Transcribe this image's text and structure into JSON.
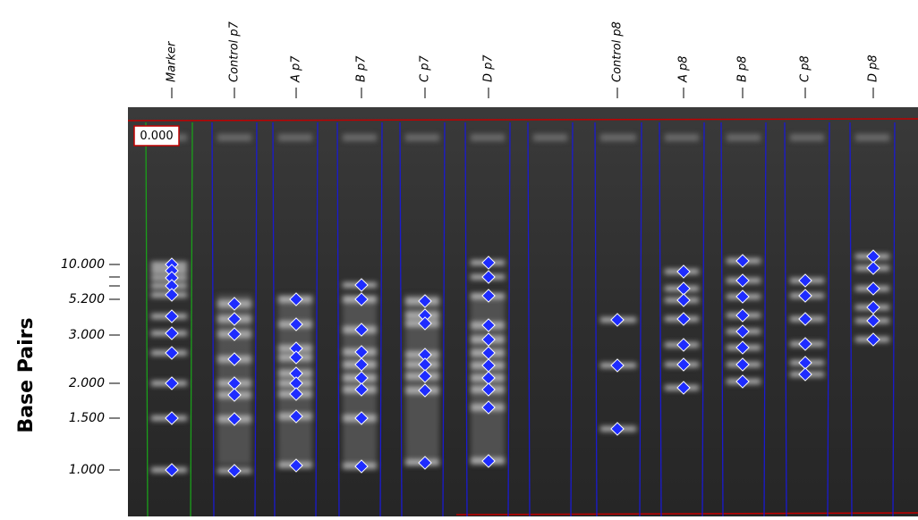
{
  "axis": {
    "label": "Base Pairs",
    "ticks": [
      "10.000",
      "5.200",
      "3.000",
      "2.000",
      "1.500",
      "1.000"
    ]
  },
  "lanes": [
    "Marker",
    "Control p7",
    "A p7",
    "B p7",
    "C p7",
    "D p7",
    "Control p8",
    "A p8",
    "B p8",
    "C p8",
    "D p8"
  ],
  "readout": "0.000"
}
